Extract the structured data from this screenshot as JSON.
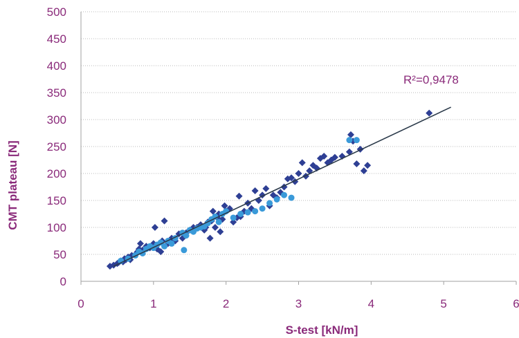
{
  "chart_data": {
    "type": "scatter",
    "title": "",
    "xlabel": "S-test [kN/m]",
    "ylabel": "CMT plateau [N]",
    "xlim": [
      0,
      6
    ],
    "ylim": [
      0,
      500
    ],
    "x_ticks": [
      "0",
      "1",
      "2",
      "3",
      "4",
      "5",
      "6"
    ],
    "y_ticks": [
      "0",
      "50",
      "100",
      "150",
      "200",
      "250",
      "300",
      "350",
      "400",
      "450",
      "500"
    ],
    "grid": "horizontal-dotted",
    "legend": "none",
    "annotation": "R²=0,9478",
    "trendline": {
      "type": "linear",
      "points": [
        [
          0.45,
          28
        ],
        [
          5.1,
          323
        ]
      ],
      "color": "#2b3a4a"
    },
    "series": [
      {
        "color": "#2e3f94",
        "marker": "diamond",
        "points": [
          [
            0.4,
            28
          ],
          [
            0.45,
            30
          ],
          [
            0.5,
            33
          ],
          [
            0.52,
            35
          ],
          [
            0.55,
            38
          ],
          [
            0.58,
            36
          ],
          [
            0.6,
            42
          ],
          [
            0.62,
            40
          ],
          [
            0.65,
            45
          ],
          [
            0.68,
            40
          ],
          [
            0.7,
            48
          ],
          [
            0.75,
            50
          ],
          [
            0.78,
            55
          ],
          [
            0.8,
            60
          ],
          [
            0.82,
            70
          ],
          [
            0.85,
            58
          ],
          [
            0.9,
            65
          ],
          [
            0.95,
            62
          ],
          [
            1.0,
            70
          ],
          [
            1.02,
            100
          ],
          [
            1.05,
            60
          ],
          [
            1.1,
            55
          ],
          [
            1.12,
            75
          ],
          [
            1.15,
            112
          ],
          [
            1.2,
            70
          ],
          [
            1.25,
            80
          ],
          [
            1.3,
            75
          ],
          [
            1.35,
            88
          ],
          [
            1.4,
            80
          ],
          [
            1.45,
            90
          ],
          [
            1.5,
            95
          ],
          [
            1.55,
            100
          ],
          [
            1.6,
            100
          ],
          [
            1.65,
            105
          ],
          [
            1.7,
            95
          ],
          [
            1.72,
            100
          ],
          [
            1.75,
            110
          ],
          [
            1.78,
            80
          ],
          [
            1.8,
            112
          ],
          [
            1.82,
            130
          ],
          [
            1.85,
            100
          ],
          [
            1.88,
            118
          ],
          [
            1.9,
            125
          ],
          [
            1.92,
            92
          ],
          [
            1.95,
            115
          ],
          [
            1.98,
            140
          ],
          [
            2.0,
            130
          ],
          [
            2.05,
            135
          ],
          [
            2.1,
            110
          ],
          [
            2.15,
            118
          ],
          [
            2.18,
            158
          ],
          [
            2.2,
            120
          ],
          [
            2.25,
            130
          ],
          [
            2.3,
            145
          ],
          [
            2.35,
            135
          ],
          [
            2.4,
            168
          ],
          [
            2.45,
            150
          ],
          [
            2.5,
            160
          ],
          [
            2.55,
            172
          ],
          [
            2.6,
            140
          ],
          [
            2.65,
            160
          ],
          [
            2.7,
            155
          ],
          [
            2.75,
            165
          ],
          [
            2.8,
            175
          ],
          [
            2.85,
            190
          ],
          [
            2.9,
            192
          ],
          [
            2.95,
            185
          ],
          [
            3.0,
            200
          ],
          [
            3.05,
            220
          ],
          [
            3.1,
            195
          ],
          [
            3.15,
            205
          ],
          [
            3.2,
            215
          ],
          [
            3.25,
            210
          ],
          [
            3.3,
            228
          ],
          [
            3.35,
            232
          ],
          [
            3.4,
            220
          ],
          [
            3.45,
            225
          ],
          [
            3.5,
            230
          ],
          [
            3.6,
            232
          ],
          [
            3.7,
            240
          ],
          [
            3.72,
            272
          ],
          [
            3.75,
            260
          ],
          [
            3.8,
            218
          ],
          [
            3.85,
            245
          ],
          [
            3.9,
            205
          ],
          [
            3.95,
            215
          ],
          [
            4.8,
            312
          ]
        ]
      },
      {
        "color": "#3a9ad9",
        "marker": "circle",
        "points": [
          [
            0.55,
            38
          ],
          [
            0.65,
            42
          ],
          [
            0.75,
            48
          ],
          [
            0.8,
            55
          ],
          [
            0.85,
            52
          ],
          [
            0.9,
            60
          ],
          [
            0.95,
            65
          ],
          [
            1.0,
            62
          ],
          [
            1.05,
            68
          ],
          [
            1.1,
            72
          ],
          [
            1.15,
            65
          ],
          [
            1.2,
            75
          ],
          [
            1.25,
            70
          ],
          [
            1.3,
            80
          ],
          [
            1.4,
            90
          ],
          [
            1.42,
            58
          ],
          [
            1.45,
            85
          ],
          [
            1.5,
            95
          ],
          [
            1.55,
            92
          ],
          [
            1.6,
            98
          ],
          [
            1.65,
            100
          ],
          [
            1.7,
            102
          ],
          [
            1.75,
            108
          ],
          [
            1.8,
            115
          ],
          [
            1.85,
            120
          ],
          [
            1.9,
            110
          ],
          [
            1.95,
            125
          ],
          [
            2.0,
            130
          ],
          [
            2.1,
            118
          ],
          [
            2.2,
            125
          ],
          [
            2.3,
            128
          ],
          [
            2.4,
            130
          ],
          [
            2.5,
            135
          ],
          [
            2.6,
            145
          ],
          [
            2.7,
            152
          ],
          [
            2.8,
            160
          ],
          [
            2.9,
            155
          ],
          [
            3.7,
            262
          ],
          [
            3.8,
            262
          ]
        ]
      }
    ]
  }
}
